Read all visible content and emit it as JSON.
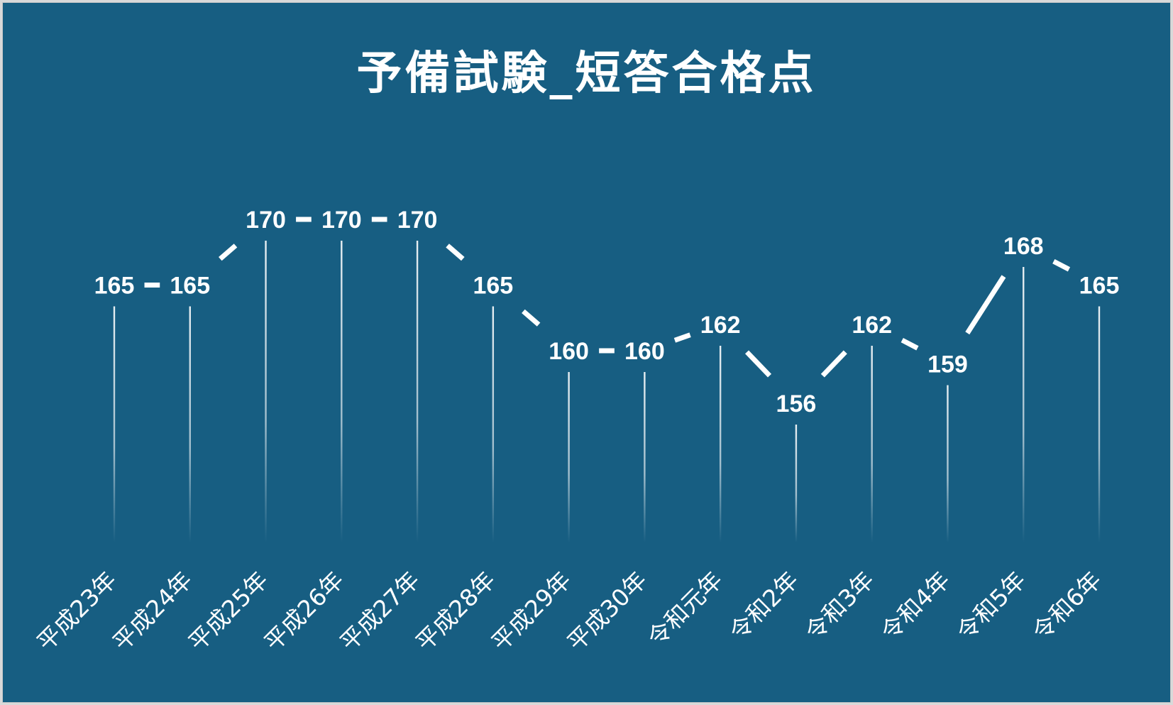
{
  "chart_data": {
    "type": "line",
    "title": "予備試験_短答合格点",
    "xlabel": "",
    "ylabel": "",
    "categories": [
      "平成23年",
      "平成24年",
      "平成25年",
      "平成26年",
      "平成27年",
      "平成28年",
      "平成29年",
      "平成30年",
      "令和元年",
      "令和2年",
      "令和3年",
      "令和4年",
      "令和5年",
      "令和6年"
    ],
    "values": [
      165,
      165,
      170,
      170,
      170,
      165,
      160,
      160,
      162,
      156,
      162,
      159,
      168,
      165
    ],
    "ylim": [
      150,
      175
    ],
    "grid": false,
    "legend": "none",
    "data_labels": true,
    "drop_lines": true
  },
  "colors": {
    "background": "#175e82",
    "line": "#ffffff",
    "text": "#ffffff"
  }
}
